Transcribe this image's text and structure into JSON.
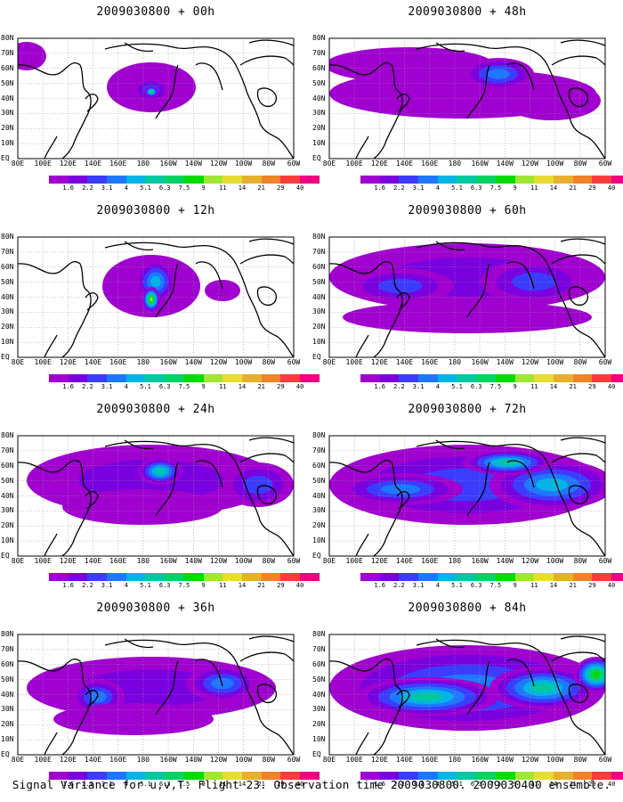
{
  "panels": [
    {
      "title": "2009030800 + 00h"
    },
    {
      "title": "2009030800 + 48h"
    },
    {
      "title": "2009030800 + 12h"
    },
    {
      "title": "2009030800 + 60h"
    },
    {
      "title": "2009030800 + 24h"
    },
    {
      "title": "2009030800 + 72h"
    },
    {
      "title": "2009030800 + 36h"
    },
    {
      "title": "2009030800 + 84h"
    }
  ],
  "lat_labels": [
    "80N",
    "70N",
    "60N",
    "50N",
    "40N",
    "30N",
    "20N",
    "10N",
    "EQ"
  ],
  "lon_labels": [
    "80E",
    "100E",
    "120E",
    "140E",
    "160E",
    "180",
    "160W",
    "140W",
    "120W",
    "100W",
    "80W",
    "60W"
  ],
  "colorbar": {
    "labels": [
      "1.6",
      "2.2",
      "3.1",
      "4",
      "5.1",
      "6.3",
      "7.5",
      "9",
      "11",
      "14",
      "21",
      "29",
      "40"
    ],
    "colors": [
      "#a000d0",
      "#7a00e0",
      "#3c3cff",
      "#1e78ff",
      "#00b4e6",
      "#00c8a0",
      "#00d264",
      "#00dc00",
      "#a0e632",
      "#e6dc32",
      "#e6af2d",
      "#f08228",
      "#fa3c3c",
      "#f00082"
    ]
  },
  "caption": "Signal Variance for u,v,T. Flight 23. Observation time 2009030800. 2009030400 ensemble."
}
